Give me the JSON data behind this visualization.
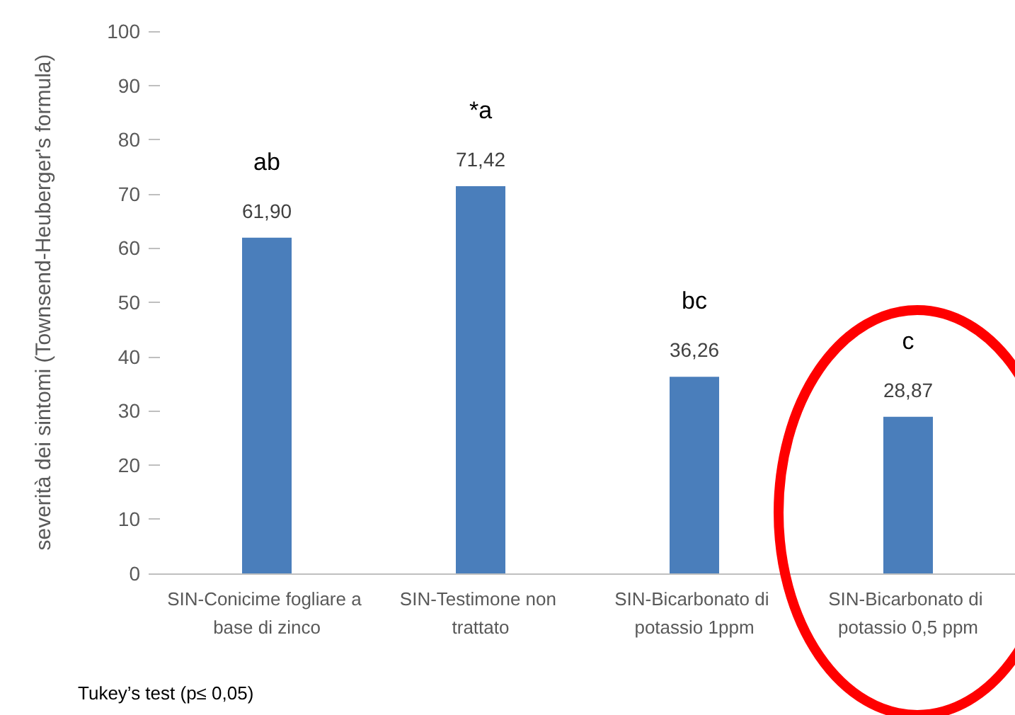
{
  "chart_data": {
    "type": "bar",
    "categories": [
      "SIN-Conicime fogliare a base di zinco",
      "SIN-Testimone non trattato",
      "SIN-Bicarbonato di potassio 1ppm",
      "SIN-Bicarbonato di potassio 0,5 ppm"
    ],
    "values": [
      61.9,
      71.42,
      36.26,
      28.87
    ],
    "value_labels": [
      "61,90",
      "71,42",
      "36,26",
      "28,87"
    ],
    "color": "#4a7ebb",
    "ylabel": "severità dei sintomi (Townsend-Heuberger's formula)",
    "ylim": [
      0,
      100
    ],
    "yticks": [
      0,
      10,
      20,
      30,
      40,
      50,
      60,
      70,
      80,
      90,
      100
    ],
    "annotations": [
      "ab",
      "*a",
      "bc",
      "c",
      "Tukey’s test (p≤ 0,05)"
    ]
  }
}
